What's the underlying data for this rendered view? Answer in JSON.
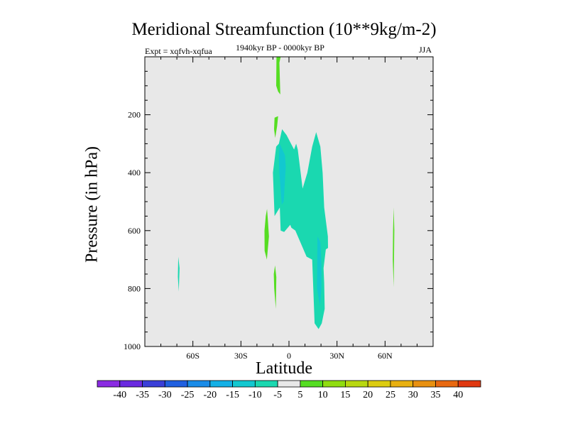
{
  "chart_data": {
    "type": "contour",
    "title": "Meridional Streamfunction (10**9kg/m-2)",
    "subtitle_left": "Expt = xqfvh-xqfua",
    "subtitle_center": "1940kyr BP - 0000kyr BP",
    "subtitle_right": "JJA",
    "xlabel": "Latitude",
    "ylabel": "Pressure (in hPa)",
    "xlim": [
      -90,
      90
    ],
    "ylim": [
      1000,
      0
    ],
    "x_ticks": [
      {
        "value": -60,
        "label": "60S"
      },
      {
        "value": -30,
        "label": "30S"
      },
      {
        "value": 0,
        "label": "0"
      },
      {
        "value": 30,
        "label": "30N"
      },
      {
        "value": 60,
        "label": "60N"
      }
    ],
    "x_minor": [
      -80,
      -70,
      -50,
      -40,
      -20,
      -10,
      10,
      20,
      40,
      50,
      70,
      80
    ],
    "y_ticks": [
      {
        "value": 200,
        "label": "200"
      },
      {
        "value": 400,
        "label": "400"
      },
      {
        "value": 600,
        "label": "600"
      },
      {
        "value": 800,
        "label": "800"
      },
      {
        "value": 1000,
        "label": "1000"
      }
    ],
    "y_minor": [
      50,
      100,
      150,
      250,
      300,
      350,
      450,
      500,
      550,
      650,
      700,
      750,
      850,
      900,
      950
    ],
    "background_color": "#e8e8e8",
    "colorbar": {
      "labels": [
        "-40",
        "-35",
        "-30",
        "-25",
        "-20",
        "-15",
        "-10",
        "-5",
        "5",
        "10",
        "15",
        "20",
        "25",
        "30",
        "35",
        "40"
      ],
      "colors": [
        "#8a2be2",
        "#6a2ae0",
        "#3a3fd8",
        "#2060e0",
        "#1a8ce8",
        "#14b0e6",
        "#12c8d0",
        "#1ad8b0",
        "#e8e8e8",
        "#55dd22",
        "#90dd10",
        "#b8d810",
        "#dccc10",
        "#e8b010",
        "#e89010",
        "#e86810",
        "#e03810"
      ]
    },
    "regions": [
      {
        "name": "region-positive-5-10-top-column",
        "level": "5-10",
        "color": "#55dd22",
        "points": [
          [
            -7.8,
            0
          ],
          [
            -5.2,
            0
          ],
          [
            -6.0,
            20
          ],
          [
            -5.4,
            130
          ],
          [
            -6.8,
            120
          ],
          [
            -8.0,
            100
          ]
        ]
      },
      {
        "name": "region-positive-5-10-upper",
        "level": "5-10",
        "color": "#55dd22",
        "points": [
          [
            -9.0,
            210
          ],
          [
            -6.8,
            205
          ],
          [
            -7.4,
            240
          ],
          [
            -8.6,
            280
          ],
          [
            -9.3,
            250
          ]
        ]
      },
      {
        "name": "region-positive-5-10-mid",
        "level": "5-10",
        "color": "#55dd22",
        "points": [
          [
            -13.7,
            525
          ],
          [
            -13.2,
            560
          ],
          [
            -12.5,
            620
          ],
          [
            -13.8,
            700
          ],
          [
            -15.2,
            670
          ],
          [
            -15.3,
            600
          ],
          [
            -14.5,
            550
          ]
        ]
      },
      {
        "name": "region-positive-5-10-lower",
        "level": "5-10",
        "color": "#55dd22",
        "points": [
          [
            -8.7,
            720
          ],
          [
            -7.9,
            760
          ],
          [
            -8.2,
            870
          ],
          [
            -9.2,
            800
          ],
          [
            -9.5,
            750
          ]
        ]
      },
      {
        "name": "region-positive-5-10-right",
        "level": "5-10",
        "color": "#55dd22",
        "points": [
          [
            65.4,
            520
          ],
          [
            65.8,
            600
          ],
          [
            65.4,
            795
          ],
          [
            64.8,
            700
          ],
          [
            65.0,
            600
          ]
        ]
      },
      {
        "name": "region-negative-5-10-left",
        "level": "-5--10",
        "color": "#1ad8b0",
        "points": [
          [
            -69.1,
            690
          ],
          [
            -68.3,
            730
          ],
          [
            -68.8,
            810
          ],
          [
            -69.4,
            760
          ]
        ]
      },
      {
        "name": "region-negative-5-10-main",
        "level": "-5--10",
        "color": "#1ad8b0",
        "points": [
          [
            -4.3,
            250
          ],
          [
            -1.5,
            270
          ],
          [
            3.2,
            320
          ],
          [
            4.5,
            300
          ],
          [
            5.5,
            320
          ],
          [
            8.5,
            455
          ],
          [
            11.5,
            400
          ],
          [
            14.5,
            310
          ],
          [
            17.0,
            260
          ],
          [
            19.6,
            310
          ],
          [
            21.0,
            400
          ],
          [
            22.0,
            520
          ],
          [
            24.3,
            620
          ],
          [
            24.4,
            660
          ],
          [
            23.0,
            665
          ],
          [
            21.6,
            730
          ],
          [
            22.0,
            780
          ],
          [
            22.3,
            870
          ],
          [
            20.5,
            920
          ],
          [
            19.5,
            930
          ],
          [
            18.5,
            940
          ],
          [
            16.0,
            920
          ],
          [
            14.5,
            700
          ],
          [
            11.0,
            690
          ],
          [
            4.0,
            600
          ],
          [
            1.5,
            590
          ],
          [
            0.8,
            580
          ],
          [
            -3.0,
            605
          ],
          [
            -5.2,
            600
          ],
          [
            -5.7,
            520
          ],
          [
            -9.0,
            550
          ],
          [
            -10.0,
            400
          ],
          [
            -8.0,
            310
          ],
          [
            -6.3,
            300
          ]
        ]
      },
      {
        "name": "region-negative-10-15-upper",
        "level": "-10--15",
        "color": "#12c8d0",
        "points": [
          [
            -5.8,
            300
          ],
          [
            -2.5,
            340
          ],
          [
            -2.0,
            380
          ],
          [
            -3.3,
            500
          ],
          [
            -4.5,
            510
          ],
          [
            -6.0,
            400
          ],
          [
            -6.3,
            350
          ]
        ]
      },
      {
        "name": "region-negative-10-15-lower",
        "level": "-10--15",
        "color": "#12c8d0",
        "points": [
          [
            17.8,
            620
          ],
          [
            19.6,
            640
          ],
          [
            20.3,
            720
          ],
          [
            20.2,
            800
          ],
          [
            19.4,
            860
          ],
          [
            17.5,
            800
          ],
          [
            17.7,
            700
          ]
        ]
      }
    ]
  }
}
